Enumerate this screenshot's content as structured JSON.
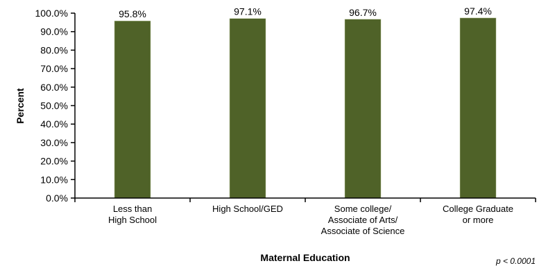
{
  "chart_data": {
    "type": "bar",
    "categories": [
      [
        "Less than",
        "High School"
      ],
      [
        "High School/GED"
      ],
      [
        "Some college/",
        "Associate of Arts/",
        "Associate of Science"
      ],
      [
        "College Graduate",
        "or more"
      ]
    ],
    "values": [
      95.8,
      97.1,
      96.7,
      97.4
    ],
    "data_labels": [
      "95.8%",
      "97.1%",
      "96.7%",
      "97.4%"
    ],
    "xlabel": "Maternal Education",
    "ylabel": "Percent",
    "ylim": [
      0,
      100
    ],
    "yticks": [
      "0.0%",
      "10.0%",
      "20.0%",
      "30.0%",
      "40.0%",
      "50.0%",
      "60.0%",
      "70.0%",
      "80.0%",
      "90.0%",
      "100.0%"
    ],
    "grid": false,
    "bar_color": "#4f6228",
    "annotation": "p < 0.0001"
  }
}
